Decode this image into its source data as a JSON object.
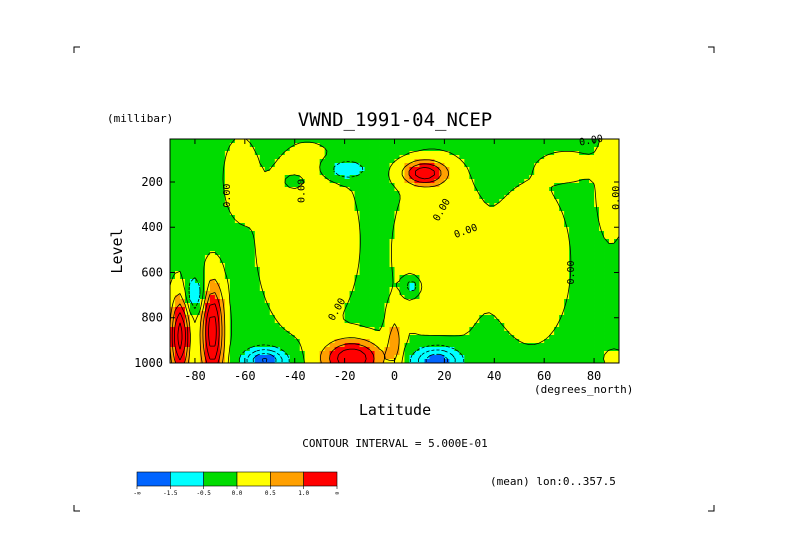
{
  "chart_data": {
    "type": "heatmap",
    "title": "VWND_1991-04_NCEP",
    "xlabel": "Latitude",
    "xunits": "(degrees_north)",
    "ylabel": "Level",
    "yunits": "(millibar)",
    "xlim": [
      -90,
      90
    ],
    "ylim": [
      1000,
      10
    ],
    "y_inverted": true,
    "x_ticks": [
      "-80",
      "-60",
      "-40",
      "-20",
      "0",
      "20",
      "40",
      "60",
      "80"
    ],
    "x_tick_values": [
      -80,
      -60,
      -40,
      -20,
      0,
      20,
      40,
      60,
      80
    ],
    "y_ticks": [
      "200",
      "400",
      "600",
      "800",
      "1000"
    ],
    "y_tick_values": [
      200,
      400,
      600,
      800,
      1000
    ],
    "contour_interval_text": "CONTOUR INTERVAL = 5.000E-01",
    "contour_interval": 0.5,
    "mean_note": "(mean) lon:0..357.5",
    "contour_label": "0.00",
    "colorbar": {
      "labels": [
        "-∞",
        "-1.5",
        "-0.5",
        "0.0",
        "0.5",
        "1.0",
        "∞"
      ],
      "bounds": [
        "-inf",
        -1.5,
        -0.5,
        0.0,
        0.5,
        1.0,
        "inf"
      ],
      "colors": [
        "#0064ff",
        "#00ffff",
        "#00dc00",
        "#ffff00",
        "#ffa000",
        "#ff0000"
      ]
    },
    "grid": false,
    "field_description": "meridional wind, longitude mean, latitude-pressure section",
    "features": [
      {
        "lat": -86,
        "level": 880,
        "value": 2.0
      },
      {
        "lat": -73,
        "level": 860,
        "value": 2.2
      },
      {
        "lat": -52,
        "level": 985,
        "value": -1.6
      },
      {
        "lat": -17,
        "level": 975,
        "value": 2.0
      },
      {
        "lat": 17,
        "level": 985,
        "value": -1.5
      },
      {
        "lat": 12,
        "level": 155,
        "value": 1.6
      },
      {
        "lat": -19,
        "level": 145,
        "value": -0.9
      },
      {
        "lat": -80,
        "level": 710,
        "value": -0.8
      },
      {
        "lat": 7,
        "level": 660,
        "value": -0.8
      }
    ]
  }
}
